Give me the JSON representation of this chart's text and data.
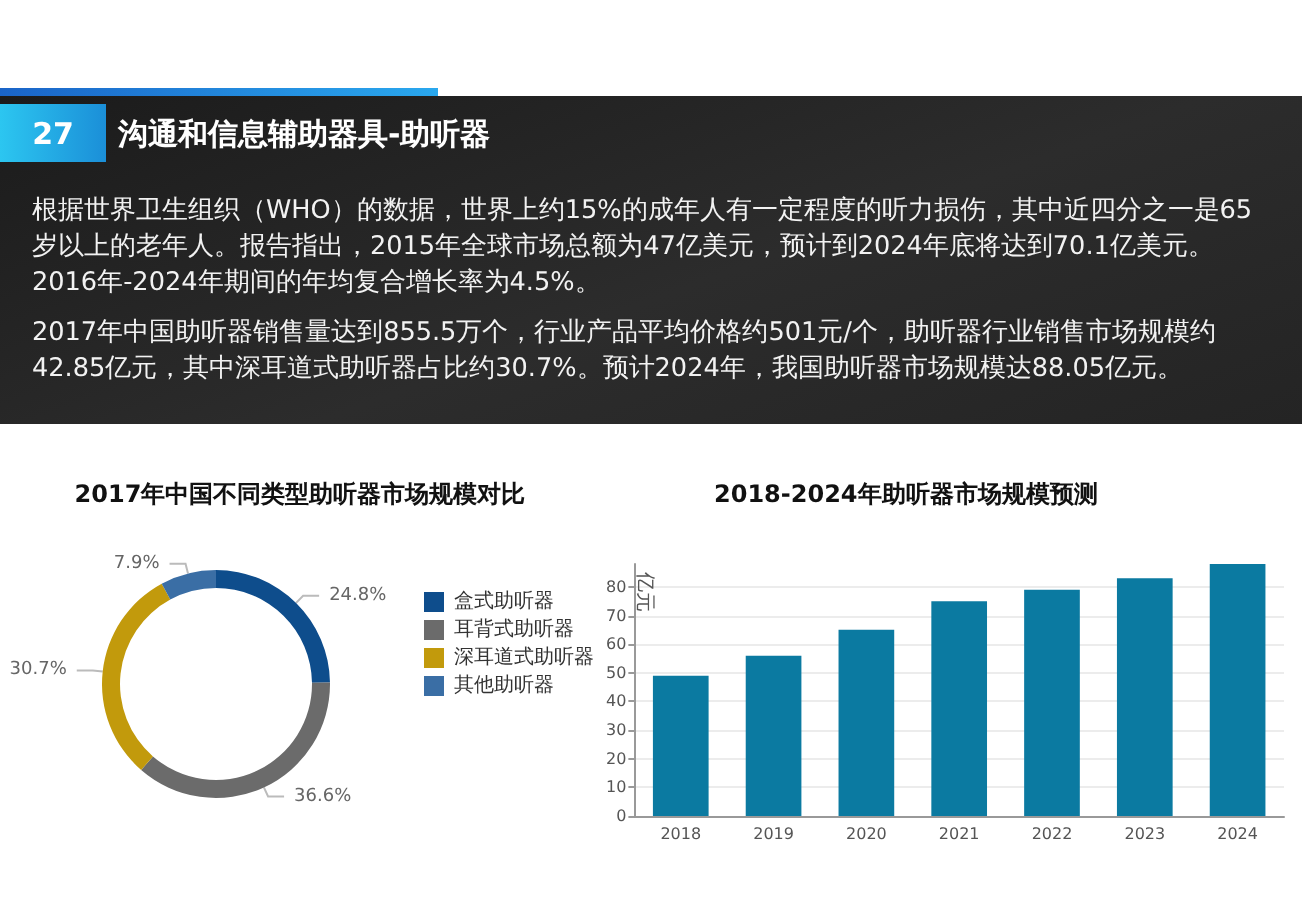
{
  "chart_data": [
    {
      "type": "other",
      "title": "沟通和信息辅助器具-助听器",
      "annotations": [
        "27",
        "根据世界卫生组织（WHO）的数据，世界上约15%的成年人有一定程度的听力损伤，其中近四分之一是65岁以上的老年人。报告指出，2015年全球市场总额为47亿美元，预计到2024年底将达到70.1亿美元。2016年-2024年期间的年均复合增长率为4.5%。",
        "2017年中国助听器销售量达到855.5万个，行业产品平均价格约501元/个，助听器行业销售市场规模约42.85亿元，其中深耳道式助听器占比约30.7%。预计2024年，我国助听器市场规模达88.05亿元。"
      ]
    },
    {
      "type": "donut",
      "title": "2017年中国不同类型助听器市场规模对比",
      "categories": [
        "盒式助听器",
        "耳背式助听器",
        "深耳道式助听器",
        "其他助听器"
      ],
      "values": [
        24.8,
        36.6,
        30.7,
        7.9
      ],
      "colors": [
        "#0e4d8c",
        "#6b6b6b",
        "#c29a0c",
        "#3a6ea5"
      ],
      "value_labels": [
        "24.8%",
        "36.6%",
        "30.7%",
        "7.9%"
      ],
      "legend": "right"
    },
    {
      "type": "bar",
      "title": "2018-2024年助听器市场规模预测",
      "ylabel": "亿元",
      "categories": [
        "2018",
        "2019",
        "2020",
        "2021",
        "2022",
        "2023",
        "2024"
      ],
      "values": [
        49,
        56,
        65,
        75,
        79,
        83,
        88
      ],
      "color": "#0b7aa1",
      "ylim": [
        0,
        88
      ],
      "yticks": [
        0,
        10,
        20,
        30,
        40,
        50,
        60,
        70,
        80
      ],
      "grid": "y"
    }
  ]
}
